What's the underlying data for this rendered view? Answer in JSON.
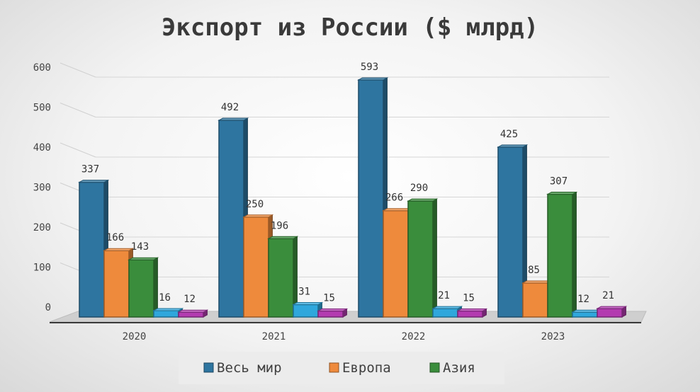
{
  "chart_data": {
    "type": "bar",
    "title": "Экспорт из России ($ млрд)",
    "categories": [
      "2020",
      "2021",
      "2022",
      "2023"
    ],
    "ylim": [
      0,
      600
    ],
    "yticks": [
      0,
      100,
      200,
      300,
      400,
      500,
      600
    ],
    "grid": true,
    "legend_position": "bottom",
    "series": [
      {
        "name": "Весь мир",
        "color": "#2e75a0",
        "values": [
          337,
          492,
          593,
          425
        ]
      },
      {
        "name": "Европа",
        "color": "#ee8a3c",
        "values": [
          166,
          250,
          266,
          85
        ]
      },
      {
        "name": "Азия",
        "color": "#3a8d3c",
        "values": [
          143,
          196,
          290,
          307
        ]
      },
      {
        "color": "#2fa7dc",
        "values": [
          16,
          31,
          21,
          12
        ]
      },
      {
        "color": "#b33bb0",
        "values": [
          12,
          15,
          15,
          21
        ]
      }
    ]
  }
}
